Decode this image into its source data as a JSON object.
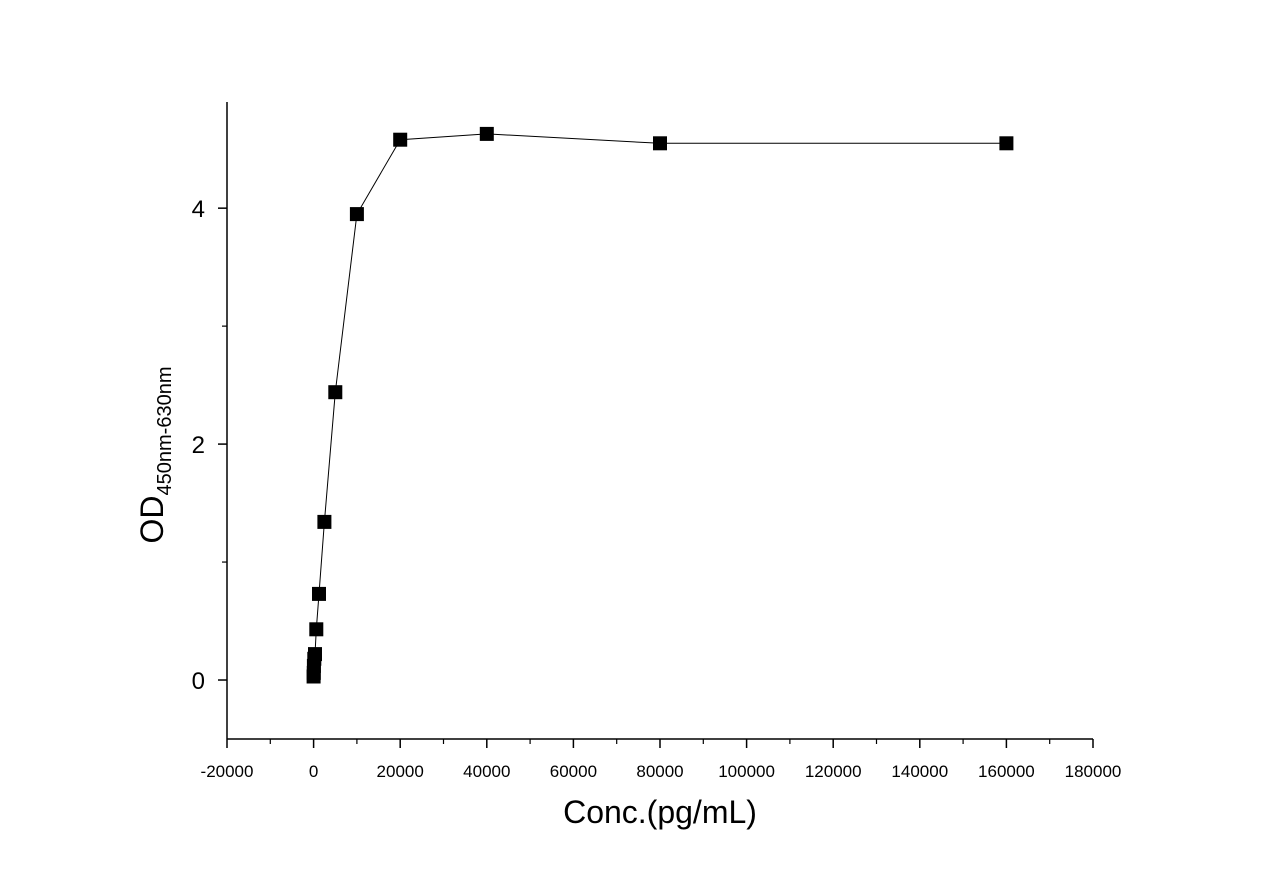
{
  "chart_data": {
    "type": "scatter",
    "title": "",
    "xlabel": "Conc.(pg/mL)",
    "ylabel_main": "OD",
    "ylabel_sub": "450nm-630nm",
    "xlim": [
      -20000,
      180000
    ],
    "ylim": [
      -0.5,
      4.9
    ],
    "x_ticks": [
      -20000,
      0,
      20000,
      40000,
      60000,
      80000,
      100000,
      120000,
      140000,
      160000,
      180000
    ],
    "x_tick_labels": [
      "-20000",
      "0",
      "20000",
      "40000",
      "60000",
      "80000",
      "100000",
      "120000",
      "140000",
      "160000",
      "180000"
    ],
    "y_ticks": [
      0,
      2,
      4
    ],
    "y_tick_labels": [
      "0",
      "2",
      "4"
    ],
    "grid": false,
    "marker": "square",
    "connected": true,
    "color": "#000000",
    "series": [
      {
        "x": [
          0,
          39,
          78,
          156,
          312,
          625,
          1250,
          2500,
          5000,
          10000,
          20000,
          40000,
          80000,
          160000
        ],
        "y": [
          0.03,
          0.06,
          0.12,
          0.18,
          0.22,
          0.43,
          0.73,
          1.34,
          2.44,
          3.95,
          4.58,
          4.63,
          4.55,
          4.55
        ]
      }
    ]
  }
}
